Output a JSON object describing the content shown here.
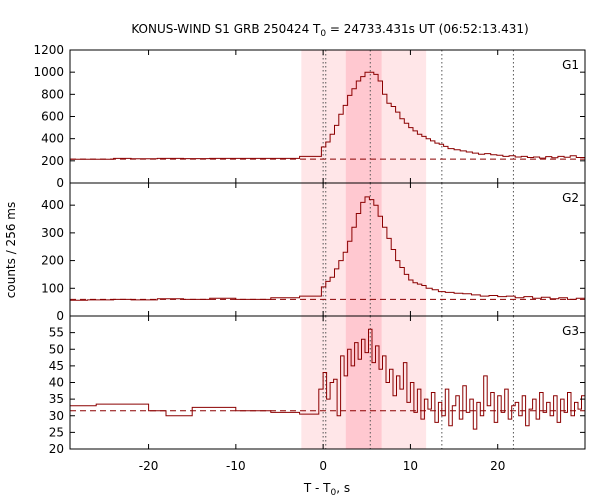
{
  "chart_data": {
    "type": "line",
    "title": "KONUS-WIND S1 GRB 250424 T",
    "title_sub": "0",
    "title_rest": " = 24733.431s UT (06:52:13.431)",
    "xlabel": "T - T",
    "xlabel_sub": "0",
    "xlabel_rest": ", s",
    "ylabel": "counts / 256 ms",
    "xlim": [
      -29,
      30
    ],
    "x_ticks": [
      -20,
      -10,
      0,
      10,
      20
    ],
    "colors": {
      "series": "#8b0000",
      "band_outer": "#ffe6e8",
      "band_inner": "#ffc8d0",
      "guide": "#555555"
    },
    "bands": {
      "outer": [
        -2.5,
        11.8
      ],
      "inner": [
        2.6,
        6.7
      ]
    },
    "vlines": [
      0,
      0.3,
      5.4,
      13.6,
      21.8
    ],
    "panels": [
      {
        "name": "G1",
        "ylim": [
          0,
          1200
        ],
        "y_ticks": [
          "0",
          "200",
          "400",
          "600",
          "800",
          "1000",
          "1200"
        ],
        "background": 215,
        "series": [
          [
            -29,
            215
          ],
          [
            -27,
            215
          ],
          [
            -24,
            222
          ],
          [
            -22,
            218
          ],
          [
            -19,
            222
          ],
          [
            -16,
            220
          ],
          [
            -13,
            222
          ],
          [
            -10,
            222
          ],
          [
            -6,
            222
          ],
          [
            -2.7,
            240
          ],
          [
            -0.5,
            240
          ],
          [
            -0.2,
            325
          ],
          [
            0.3,
            370
          ],
          [
            0.8,
            440
          ],
          [
            1.3,
            520
          ],
          [
            1.8,
            620
          ],
          [
            2.3,
            700
          ],
          [
            2.8,
            790
          ],
          [
            3.3,
            850
          ],
          [
            3.8,
            920
          ],
          [
            4.3,
            960
          ],
          [
            4.8,
            1000
          ],
          [
            5.3,
            1000
          ],
          [
            5.8,
            980
          ],
          [
            6.3,
            920
          ],
          [
            6.8,
            800
          ],
          [
            7.3,
            720
          ],
          [
            7.8,
            690
          ],
          [
            8.3,
            640
          ],
          [
            8.8,
            580
          ],
          [
            9.3,
            540
          ],
          [
            9.8,
            500
          ],
          [
            10.3,
            470
          ],
          [
            10.8,
            440
          ],
          [
            11.3,
            420
          ],
          [
            11.8,
            400
          ],
          [
            12.3,
            380
          ],
          [
            12.8,
            360
          ],
          [
            13.3,
            350
          ],
          [
            13.8,
            330
          ],
          [
            14.3,
            310
          ],
          [
            15,
            300
          ],
          [
            15.7,
            290
          ],
          [
            16.4,
            280
          ],
          [
            17.1,
            270
          ],
          [
            17.8,
            260
          ],
          [
            18.5,
            265
          ],
          [
            19.2,
            255
          ],
          [
            19.9,
            250
          ],
          [
            20.6,
            240
          ],
          [
            21.3,
            245
          ],
          [
            22,
            235
          ],
          [
            22.7,
            240
          ],
          [
            23.4,
            230
          ],
          [
            24.1,
            235
          ],
          [
            24.8,
            225
          ],
          [
            25.5,
            238
          ],
          [
            26.2,
            228
          ],
          [
            26.9,
            240
          ],
          [
            27.6,
            232
          ],
          [
            28.3,
            245
          ],
          [
            29,
            230
          ],
          [
            30,
            230
          ]
        ]
      },
      {
        "name": "G2",
        "ylim": [
          0,
          480
        ],
        "y_ticks": [
          "0",
          "100",
          "200",
          "300",
          "400"
        ],
        "background": 60,
        "series": [
          [
            -29,
            57
          ],
          [
            -27,
            58
          ],
          [
            -24,
            60
          ],
          [
            -22,
            58
          ],
          [
            -19,
            62
          ],
          [
            -16,
            60
          ],
          [
            -13,
            64
          ],
          [
            -10,
            60
          ],
          [
            -6,
            66
          ],
          [
            -2.7,
            72
          ],
          [
            -0.5,
            72
          ],
          [
            -0.2,
            105
          ],
          [
            0.3,
            125
          ],
          [
            0.8,
            140
          ],
          [
            1.3,
            170
          ],
          [
            1.8,
            200
          ],
          [
            2.3,
            230
          ],
          [
            2.8,
            270
          ],
          [
            3.3,
            320
          ],
          [
            3.8,
            370
          ],
          [
            4.3,
            410
          ],
          [
            4.8,
            430
          ],
          [
            5.3,
            420
          ],
          [
            5.8,
            400
          ],
          [
            6.3,
            360
          ],
          [
            6.8,
            320
          ],
          [
            7.3,
            280
          ],
          [
            7.8,
            240
          ],
          [
            8.3,
            200
          ],
          [
            8.8,
            175
          ],
          [
            9.3,
            150
          ],
          [
            9.8,
            130
          ],
          [
            10.3,
            120
          ],
          [
            10.8,
            115
          ],
          [
            11.3,
            110
          ],
          [
            11.8,
            100
          ],
          [
            12.5,
            95
          ],
          [
            13.2,
            88
          ],
          [
            14,
            85
          ],
          [
            15,
            82
          ],
          [
            16,
            80
          ],
          [
            17,
            76
          ],
          [
            18,
            72
          ],
          [
            19,
            74
          ],
          [
            20,
            70
          ],
          [
            21,
            72
          ],
          [
            22,
            66
          ],
          [
            23,
            70
          ],
          [
            24,
            64
          ],
          [
            25,
            68
          ],
          [
            26,
            62
          ],
          [
            27,
            66
          ],
          [
            28,
            60
          ],
          [
            29,
            64
          ],
          [
            30,
            64
          ]
        ]
      },
      {
        "name": "G3",
        "ylim": [
          20,
          60
        ],
        "y_ticks": [
          "20",
          "25",
          "30",
          "35",
          "40",
          "45",
          "50",
          "55"
        ],
        "background": 31.5,
        "series": [
          [
            -29,
            33
          ],
          [
            -26,
            33.5
          ],
          [
            -20,
            31.5
          ],
          [
            -18,
            30
          ],
          [
            -15,
            32.5
          ],
          [
            -10,
            31.5
          ],
          [
            -6,
            31
          ],
          [
            -2.7,
            30.5
          ],
          [
            -0.5,
            38
          ],
          [
            0,
            43
          ],
          [
            0.4,
            35
          ],
          [
            0.8,
            40
          ],
          [
            1.2,
            41
          ],
          [
            1.6,
            30
          ],
          [
            2,
            48
          ],
          [
            2.4,
            42
          ],
          [
            2.8,
            50
          ],
          [
            3.2,
            45
          ],
          [
            3.6,
            52
          ],
          [
            4,
            47
          ],
          [
            4.4,
            53
          ],
          [
            4.8,
            49
          ],
          [
            5.2,
            56
          ],
          [
            5.6,
            46
          ],
          [
            6,
            51
          ],
          [
            6.4,
            44
          ],
          [
            6.8,
            48
          ],
          [
            7.2,
            40
          ],
          [
            7.6,
            44
          ],
          [
            8,
            36
          ],
          [
            8.4,
            42
          ],
          [
            8.8,
            38
          ],
          [
            9.2,
            46
          ],
          [
            9.6,
            34
          ],
          [
            10,
            40
          ],
          [
            10.4,
            31
          ],
          [
            10.8,
            38
          ],
          [
            11.2,
            29
          ],
          [
            11.6,
            35
          ],
          [
            12,
            32
          ],
          [
            12.4,
            37
          ],
          [
            12.8,
            28
          ],
          [
            13.2,
            34
          ],
          [
            13.6,
            30
          ],
          [
            14,
            38
          ],
          [
            14.4,
            27
          ],
          [
            14.8,
            33
          ],
          [
            15.2,
            36
          ],
          [
            15.6,
            29
          ],
          [
            16,
            39
          ],
          [
            16.4,
            31
          ],
          [
            16.8,
            35
          ],
          [
            17.2,
            26
          ],
          [
            17.6,
            34
          ],
          [
            18,
            30
          ],
          [
            18.4,
            42
          ],
          [
            18.8,
            33
          ],
          [
            19.2,
            37
          ],
          [
            19.6,
            28
          ],
          [
            20,
            36
          ],
          [
            20.4,
            31
          ],
          [
            20.8,
            38
          ],
          [
            21.2,
            29
          ],
          [
            21.6,
            33
          ],
          [
            22,
            34
          ],
          [
            22.4,
            30
          ],
          [
            22.8,
            36
          ],
          [
            23.2,
            27
          ],
          [
            23.6,
            32
          ],
          [
            24,
            35
          ],
          [
            24.4,
            29
          ],
          [
            24.8,
            37
          ],
          [
            25.2,
            31
          ],
          [
            25.6,
            34
          ],
          [
            26,
            30
          ],
          [
            26.4,
            36
          ],
          [
            26.8,
            28
          ],
          [
            27.2,
            35
          ],
          [
            27.6,
            31
          ],
          [
            28,
            37
          ],
          [
            28.4,
            30
          ],
          [
            28.8,
            34
          ],
          [
            29.2,
            32
          ],
          [
            29.6,
            36
          ],
          [
            30,
            36
          ]
        ]
      }
    ]
  }
}
